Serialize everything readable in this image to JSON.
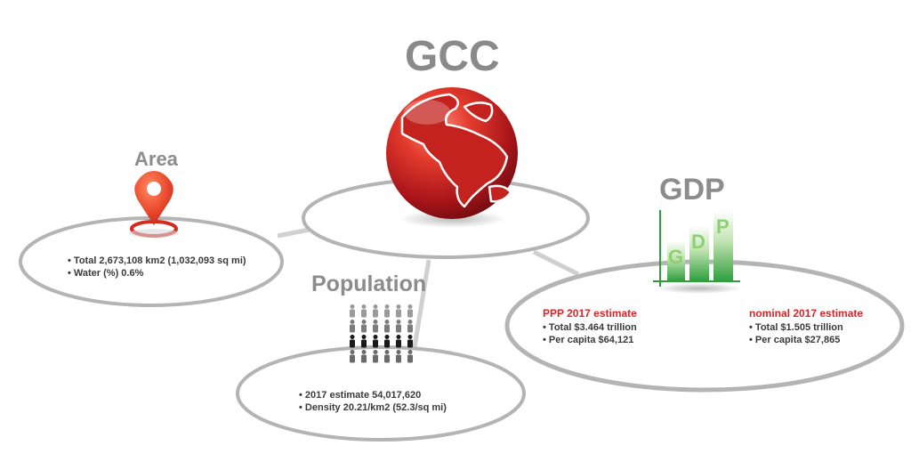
{
  "gcc": {
    "title": "GCC"
  },
  "area": {
    "title": "Area",
    "items": [
      "Total 2,673,108 km2 (1,032,093 sq mi)",
      "Water (%) 0.6%"
    ]
  },
  "population": {
    "title": "Population",
    "items": [
      "2017 estimate 54,017,620",
      "Density 20.21/km2 (52.3/sq mi)"
    ]
  },
  "gdp": {
    "title": "GDP",
    "icon_letters": [
      "G",
      "D",
      "P"
    ],
    "ppp": {
      "heading": "PPP 2017 estimate",
      "items": [
        "Total $3.464 trillion",
        "Per capita $64,121"
      ]
    },
    "nominal": {
      "heading": "nominal 2017 estimate",
      "items": [
        "Total $1.505 trillion",
        "Per capita $27,865"
      ]
    }
  },
  "colors": {
    "accent_red": "#d9262a",
    "ring_gray": "#b4b4b4",
    "title_gray": "#8c8c8c",
    "chart_green": "#2e9e3c"
  }
}
